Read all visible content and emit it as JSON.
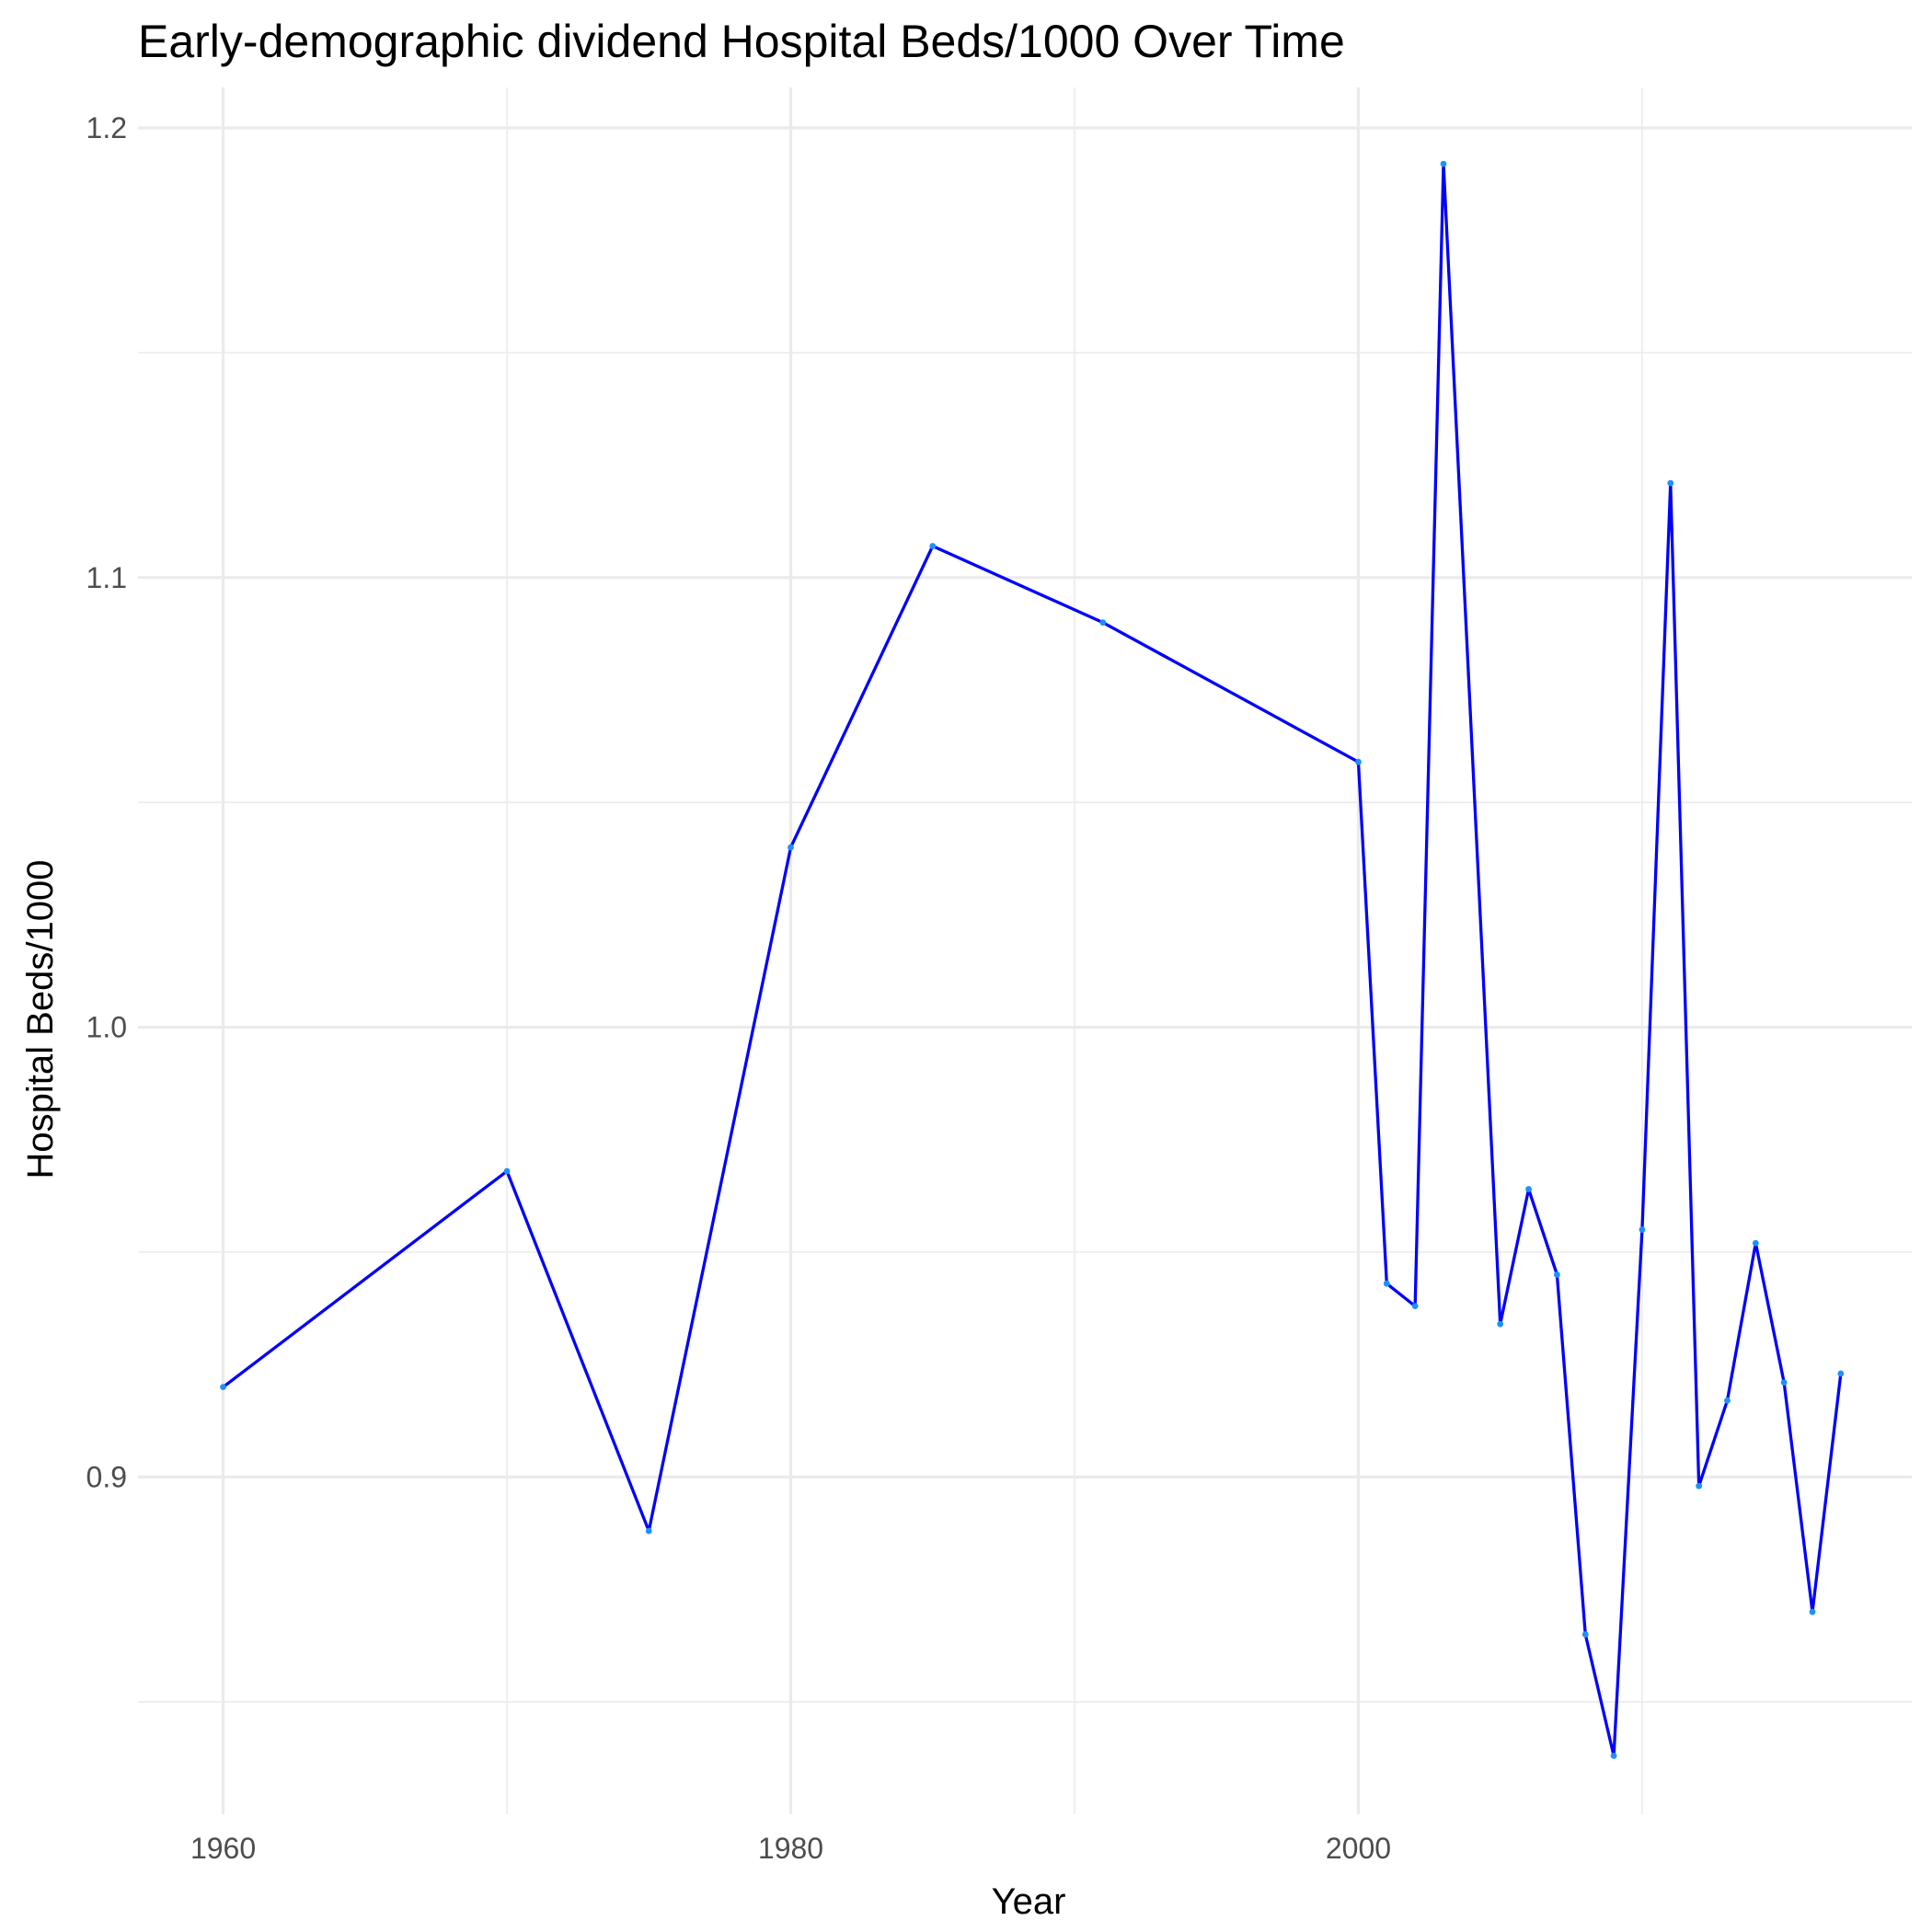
{
  "chart_data": {
    "type": "line",
    "title": "Early-demographic dividend Hospital Beds/1000 Over Time",
    "xlabel": "Year",
    "ylabel": "Hospital Beds/1000",
    "xlim": [
      1957,
      2019.5
    ],
    "ylim": [
      0.825,
      1.209
    ],
    "x_ticks": [
      1960,
      1980,
      2000
    ],
    "y_ticks": [
      0.9,
      1.0,
      1.1,
      1.2
    ],
    "x_tick_labels": [
      "1960",
      "1980",
      "2000"
    ],
    "y_tick_labels": [
      "0.9",
      "1.0",
      "1.1",
      "1.2"
    ],
    "grid": true,
    "legend": "none",
    "colors": {
      "line": "#0000ff",
      "points": "#1e90ff",
      "grid": "#ebebeb"
    },
    "series": [
      {
        "x": [
          1960,
          1970,
          1975,
          1980,
          1985,
          1991,
          2000,
          2001,
          2002,
          2003,
          2005,
          2006,
          2007,
          2008,
          2009,
          2010,
          2011,
          2012,
          2013,
          2014,
          2015,
          2016,
          2017
        ],
        "values": [
          0.92,
          0.968,
          0.888,
          1.04,
          1.107,
          1.09,
          1.059,
          0.943,
          0.938,
          1.192,
          0.934,
          0.964,
          0.945,
          0.865,
          0.838,
          0.955,
          1.121,
          0.898,
          0.917,
          0.952,
          0.921,
          0.87,
          0.923
        ]
      }
    ]
  }
}
